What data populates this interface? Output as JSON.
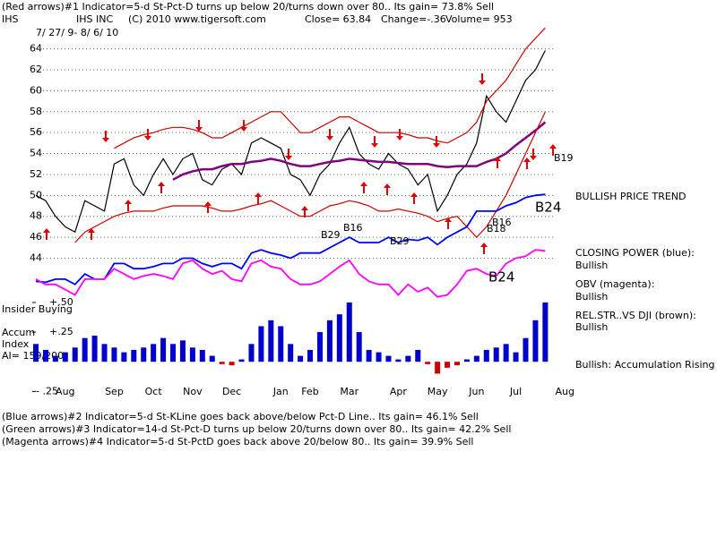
{
  "header": {
    "line1": "(Red arrows)#1 Indicator=5-d St-Pct-D turns up below 20/turns down over 80.. Its gain= 73.8% Sell",
    "symbol": "IHS",
    "company": "IHS INC",
    "copyright": "(C) 2010 www.tigersoft.com",
    "close": "Close=  63.84",
    "change": "Change=-.36",
    "volume": "Volume= 953",
    "dates": "7/ 27/ 9- 8/ 6/ 10"
  },
  "chart_data": [
    {
      "type": "line",
      "categories": [
        null,
        null,
        null,
        "Aug",
        null,
        null,
        null,
        null,
        "Sep",
        null,
        null,
        null,
        "Oct",
        null,
        null,
        null,
        "Nov",
        null,
        null,
        null,
        "Dec",
        null,
        null,
        null,
        null,
        "Jan",
        null,
        null,
        "Feb",
        null,
        null,
        null,
        "Mar",
        null,
        null,
        null,
        null,
        "Apr",
        null,
        null,
        null,
        "May",
        null,
        null,
        null,
        "Jun",
        null,
        null,
        null,
        "Jul",
        null,
        null,
        null,
        null,
        "Aug"
      ],
      "ylim": [
        39.6,
        66.1
      ],
      "yticks": [
        44,
        46,
        48,
        50,
        52,
        54,
        56,
        58,
        60,
        62,
        64
      ],
      "grid": true,
      "grid_color": "#2e8b2e",
      "annotations": [
        "B29",
        "B16",
        "B29",
        "B18",
        "B16",
        "B24",
        "B24",
        "B19"
      ],
      "series": [
        {
          "color": "#000000",
          "values": [
            50,
            49.5,
            48,
            47,
            46.5,
            49.5,
            49,
            48.5,
            53,
            53.5,
            51,
            50,
            52,
            53.5,
            52,
            53.5,
            54,
            51.5,
            51,
            52.5,
            53,
            52,
            55,
            55.5,
            55,
            54.5,
            52,
            51.5,
            50,
            52,
            53,
            55,
            56.5,
            54,
            53,
            52.5,
            54,
            53,
            52.5,
            51,
            52,
            48.5,
            50,
            52,
            53,
            55,
            59.5,
            58,
            57,
            59,
            61,
            62,
            63.84,
            null,
            null
          ]
        },
        {
          "color": "#800080",
          "values": [
            null,
            null,
            null,
            null,
            null,
            null,
            null,
            null,
            null,
            null,
            null,
            null,
            null,
            null,
            51.5,
            52,
            52.3,
            52.5,
            52.5,
            52.8,
            53,
            53,
            53.2,
            53.3,
            53.5,
            53.3,
            53,
            52.8,
            52.8,
            53,
            53.2,
            53.3,
            53.5,
            53.4,
            53.3,
            53.2,
            53.2,
            53.1,
            53,
            53,
            53,
            52.8,
            52.7,
            52.8,
            52.8,
            52.8,
            53.2,
            53.5,
            54,
            54.8,
            55.5,
            56.2,
            57,
            null,
            null
          ]
        },
        {
          "color": "#cc0000",
          "values": [
            null,
            null,
            null,
            null,
            null,
            null,
            null,
            null,
            54.5,
            55,
            55.5,
            55.8,
            56,
            56.3,
            56.5,
            56.5,
            56.3,
            56,
            55.5,
            55.5,
            56,
            56.5,
            57,
            57.5,
            58,
            58,
            57,
            56,
            56,
            56.5,
            57,
            57.5,
            57.5,
            57,
            56.5,
            56,
            56,
            56,
            55.8,
            55.5,
            55.5,
            55.2,
            55,
            55.5,
            56,
            57,
            59,
            60,
            61,
            62.5,
            64,
            65,
            66,
            null,
            null
          ]
        },
        {
          "color": "#cc0000",
          "values": [
            null,
            null,
            null,
            null,
            45.5,
            46.5,
            47,
            47.5,
            48,
            48.3,
            48.5,
            48.5,
            48.5,
            48.8,
            49,
            49,
            49,
            49,
            48.8,
            48.5,
            48.5,
            48.7,
            49,
            49.2,
            49.5,
            49,
            48.5,
            48,
            48,
            48.5,
            49,
            49.2,
            49.5,
            49.3,
            49,
            48.5,
            48.5,
            48.7,
            48.5,
            48.3,
            48,
            47.5,
            47.8,
            48,
            47,
            46,
            47,
            48.5,
            50,
            52,
            54,
            56,
            58,
            null,
            null
          ]
        },
        {
          "name": "CLOSING POWER (blue):",
          "color": "#0000ff",
          "values": [
            41.8,
            41.7,
            42,
            42,
            41.5,
            42.5,
            42,
            42,
            43.5,
            43.5,
            43,
            43,
            43.2,
            43.5,
            43.5,
            44,
            44,
            43.5,
            43.2,
            43.5,
            43.5,
            43,
            44.5,
            44.8,
            44.5,
            44.3,
            44,
            44.5,
            44.5,
            44.5,
            45,
            45.5,
            46,
            45.5,
            45.5,
            45.5,
            46,
            45.5,
            45.8,
            45.7,
            46,
            45.3,
            46,
            46.5,
            47,
            48.5,
            48.5,
            48.5,
            49,
            49.3,
            49.8,
            50,
            50.1,
            null,
            null
          ]
        },
        {
          "name": "OBV (magenta):",
          "color": "#ff00ff",
          "values": [
            42,
            41.5,
            41.5,
            41,
            40.5,
            42,
            42,
            42,
            43,
            42.5,
            42,
            42.3,
            42.5,
            42.3,
            42,
            43.5,
            43.8,
            43,
            42.5,
            42.8,
            42,
            41.8,
            43.5,
            43.8,
            43.2,
            43,
            42,
            41.5,
            41.5,
            41.8,
            42.5,
            43.2,
            43.8,
            42.5,
            41.8,
            41.5,
            41.5,
            40.5,
            41.5,
            40.8,
            41.2,
            40.3,
            40.5,
            41.5,
            42.8,
            43,
            42.5,
            42.3,
            43.5,
            44,
            44.2,
            44.8,
            44.7,
            null,
            null
          ]
        }
      ]
    },
    {
      "type": "bar",
      "ylim": [
        -0.27,
        0.56
      ],
      "yticks": [
        {
          "value": 0.5,
          "label": "+.50"
        },
        {
          "value": 0.25,
          "label": "+.25"
        },
        {
          "value": -0.25,
          "label": "- .25"
        }
      ],
      "positive_color": "#0000cc",
      "negative_color": "#cc0000",
      "values": [
        0.15,
        0.1,
        0.05,
        0.08,
        0.12,
        0.2,
        0.22,
        0.15,
        0.12,
        0.08,
        0.1,
        0.12,
        0.15,
        0.2,
        0.15,
        0.18,
        0.12,
        0.1,
        0.05,
        -0.02,
        -0.03,
        0.02,
        0.15,
        0.3,
        0.35,
        0.3,
        0.15,
        0.05,
        0.1,
        0.25,
        0.35,
        0.4,
        0.5,
        0.25,
        0.1,
        0.08,
        0.05,
        0.02,
        0.05,
        0.1,
        -0.02,
        -0.1,
        -0.05,
        -0.03,
        0.02,
        0.05,
        0.1,
        0.12,
        0.15,
        0.08,
        0.2,
        0.35,
        0.5,
        null,
        null
      ]
    }
  ],
  "labels": {
    "trend": "BULLISH PRICE TREND",
    "cp_status": "Bullish",
    "obv_status": "Bullish",
    "rs": "REL.STR..VS DJI (brown):",
    "rs_status": "Bullish",
    "accum_status": "Bullish: Accumulation Rising",
    "insider": "Insider Buying",
    "accum": "Accum",
    "index": "Index",
    "ai": "AI= 159/200"
  },
  "footer": [
    "(Blue arrows)#2 Indicator=5-d St-KLine goes back above/below Pct-D Line.. Its gain= 46.1% Sell",
    "(Green arrows)#3 Indicator=14-d St-Pct-D turns up below 20/turns down over 80.. Its gain= 42.2% Sell",
    "(Magenta arrows)#4 Indicator=5-d St-PctD goes back above 20/below 80.. Its gain= 39.9% Sell"
  ]
}
